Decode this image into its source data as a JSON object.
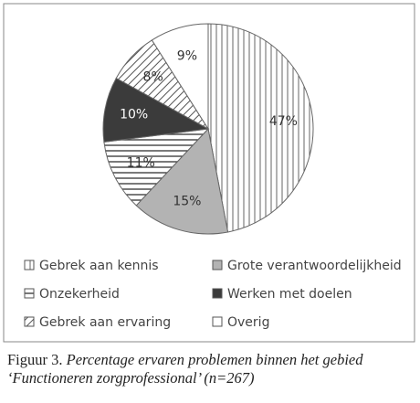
{
  "chart_data": {
    "type": "pie",
    "categories": [
      "Gebrek aan kennis",
      "Grote verantwoordelijkheid",
      "Onzekerheid",
      "Werken met doelen",
      "Gebrek aan ervaring",
      "Overig"
    ],
    "values": [
      47,
      15,
      11,
      10,
      8,
      9
    ],
    "value_labels": [
      "47%",
      "15%",
      "11%",
      "10%",
      "8%",
      "9%"
    ],
    "colors": [
      "#ffffff",
      "#b3b3b3",
      "#ffffff",
      "#3b3b3b",
      "#ffffff",
      "#ffffff"
    ],
    "patterns": [
      "vertical",
      "solid",
      "horizontal",
      "solid",
      "diagonal",
      "solid"
    ],
    "legend": "bottom"
  },
  "caption": {
    "label": "Figuur 3.",
    "text": "Percentage ervaren problemen binnen het gebied ‘Functioneren zorgprofessional’ (n=267)"
  }
}
